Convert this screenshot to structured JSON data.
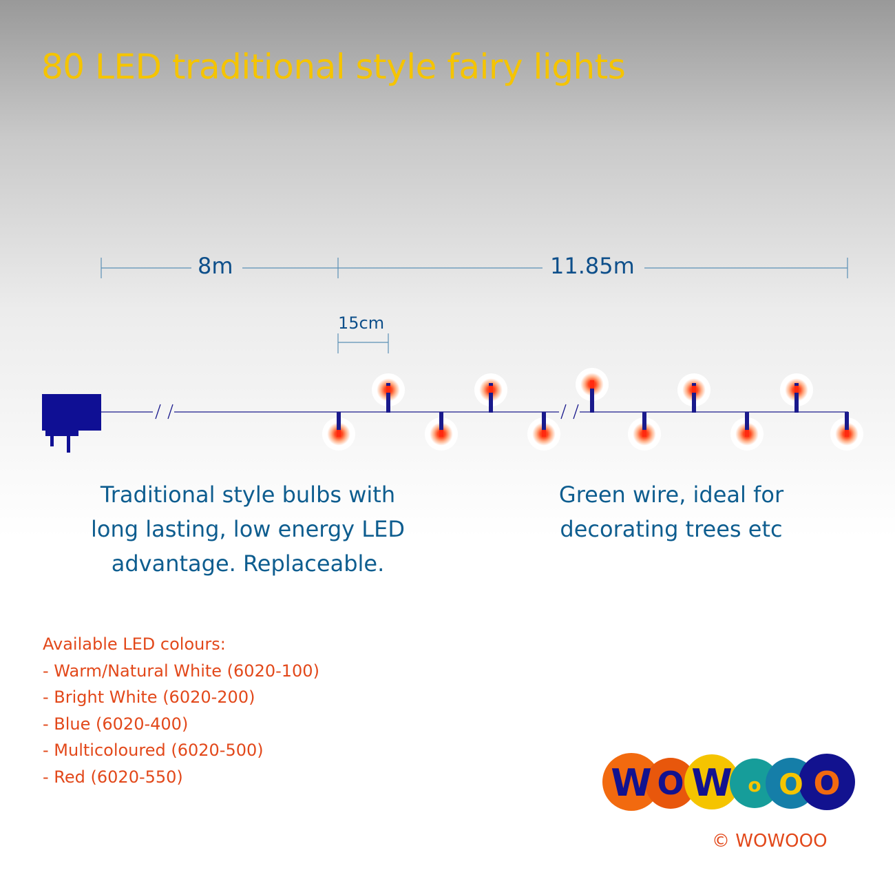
{
  "title": "80 LED traditional style fairy lights",
  "dimensions": {
    "lead_length": "8m",
    "lit_length": "11.85m",
    "bulb_spacing": "15cm"
  },
  "descriptions": {
    "left_lines": [
      "Traditional style bulbs with",
      "long lasting, low energy LED",
      "advantage. Replaceable."
    ],
    "right_lines": [
      "Green wire, ideal for",
      "decorating trees etc"
    ]
  },
  "colours": {
    "heading": "Available LED colours:",
    "items": [
      "- Warm/Natural White (6020-100)",
      "- Bright White (6020-200)",
      "- Blue (6020-400)",
      "- Multicoloured (6020-500)",
      "- Red (6020-550)"
    ]
  },
  "logo": {
    "letters": [
      "W",
      "O",
      "W",
      "o",
      "O",
      "O"
    ]
  },
  "copyright": "© WOWOOO",
  "colors": {
    "title": "#f5c400",
    "wire": "#1a1a8c",
    "bulb_glow": "#ff3a1a",
    "description_text": "#0e5d8f",
    "colour_list_text": "#e2481a"
  }
}
